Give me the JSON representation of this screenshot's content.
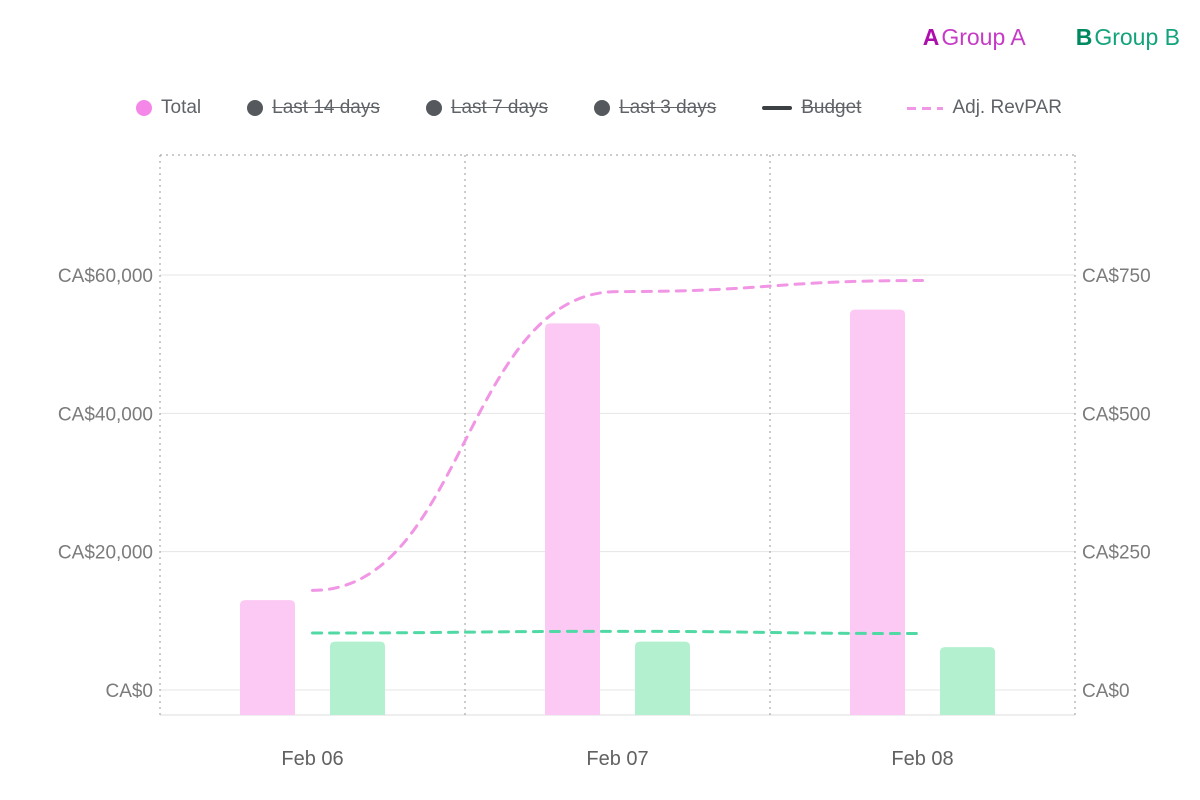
{
  "group_tabs": [
    {
      "badge": "A",
      "label": "Group A",
      "badge_color": "#ad0fad",
      "label_color": "#c63bc6"
    },
    {
      "badge": "B",
      "label": "Group B",
      "badge_color": "#00895f",
      "label_color": "#12a37c"
    }
  ],
  "legend": [
    {
      "label": "Total",
      "swatch": "dot",
      "color": "#f487e8",
      "disabled": false
    },
    {
      "label": "Last 14 days",
      "swatch": "dot",
      "color": "#55585c",
      "disabled": true
    },
    {
      "label": "Last 7 days",
      "swatch": "dot",
      "color": "#55585c",
      "disabled": true
    },
    {
      "label": "Last 3 days",
      "swatch": "dot",
      "color": "#55585c",
      "disabled": true
    },
    {
      "label": "Budget",
      "swatch": "line",
      "color": "#3c4043",
      "disabled": true
    },
    {
      "label": "Adj. RevPAR",
      "swatch": "dashed-line",
      "color": "#f195e5",
      "disabled": false
    }
  ],
  "chart_data": {
    "type": "bar",
    "categories": [
      "Feb 06",
      "Feb 07",
      "Feb 08"
    ],
    "series": [
      {
        "name": "Total Group A",
        "type": "bar",
        "axis": "left",
        "color": "#fbc9f3",
        "values": [
          13000,
          53000,
          55000
        ]
      },
      {
        "name": "Total Group B",
        "type": "bar",
        "axis": "left",
        "color": "#b2f0cf",
        "values": [
          7000,
          7000,
          6200
        ]
      },
      {
        "name": "Adj. RevPAR Group A",
        "type": "dashed-line",
        "axis": "right",
        "color": "#f195e5",
        "values": [
          180,
          720,
          740
        ]
      },
      {
        "name": "Adj. RevPAR Group B",
        "type": "dashed-line",
        "axis": "right",
        "color": "#50d9a5",
        "values": [
          103,
          106,
          102
        ]
      }
    ],
    "left_axis": {
      "tick_labels": [
        "CA$0",
        "CA$20,000",
        "CA$40,000",
        "CA$60,000"
      ],
      "tick_values": [
        0,
        20000,
        40000,
        60000
      ],
      "max": 77300
    },
    "right_axis": {
      "tick_labels": [
        "CA$0",
        "CA$250",
        "CA$500",
        "CA$750"
      ],
      "tick_values": [
        0,
        250,
        500,
        750
      ],
      "max": 966
    },
    "grid": {
      "horizontal": "solid",
      "vertical": "dotted"
    },
    "legend_position": "top",
    "title": ""
  }
}
